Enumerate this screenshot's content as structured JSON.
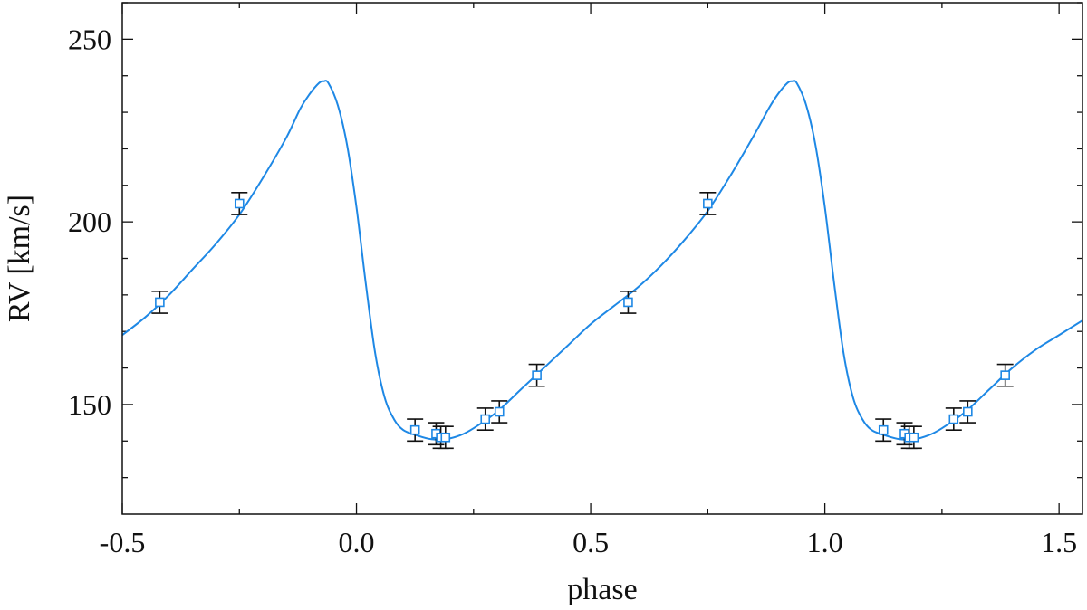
{
  "chart_data": {
    "type": "scatter",
    "title": "",
    "xlabel": "phase",
    "ylabel": "RV [km/s]",
    "xlim": [
      -0.5,
      1.55
    ],
    "ylim": [
      120,
      260
    ],
    "x_ticks": [
      -0.5,
      0.0,
      0.5,
      1.0,
      1.5
    ],
    "x_tick_labels": [
      "-0.5",
      "0.0",
      "0.5",
      "1.0",
      "1.5"
    ],
    "x_minor_step": 0.25,
    "y_ticks": [
      150,
      200,
      250
    ],
    "y_tick_labels": [
      "150",
      "200",
      "250"
    ],
    "y_minor_step": 10,
    "grid": false,
    "legend": "none",
    "colors": {
      "model": "#1e88e5",
      "points": "#1e88e5",
      "errorbars": "#111111"
    },
    "series": [
      {
        "kind": "points_with_errorbars",
        "points": [
          {
            "x": -0.42,
            "y": 178,
            "err": 3
          },
          {
            "x": -0.25,
            "y": 205,
            "err": 3
          },
          {
            "x": 0.125,
            "y": 143,
            "err": 3
          },
          {
            "x": 0.17,
            "y": 142,
            "err": 3
          },
          {
            "x": 0.18,
            "y": 141,
            "err": 3
          },
          {
            "x": 0.19,
            "y": 141,
            "err": 3
          },
          {
            "x": 0.275,
            "y": 146,
            "err": 3
          },
          {
            "x": 0.305,
            "y": 148,
            "err": 3
          },
          {
            "x": 0.385,
            "y": 158,
            "err": 3
          },
          {
            "x": 0.58,
            "y": 178,
            "err": 3
          },
          {
            "x": 0.75,
            "y": 205,
            "err": 3
          },
          {
            "x": 1.125,
            "y": 143,
            "err": 3
          },
          {
            "x": 1.17,
            "y": 142,
            "err": 3
          },
          {
            "x": 1.18,
            "y": 141,
            "err": 3
          },
          {
            "x": 1.19,
            "y": 141,
            "err": 3
          },
          {
            "x": 1.275,
            "y": 146,
            "err": 3
          },
          {
            "x": 1.305,
            "y": 148,
            "err": 3
          },
          {
            "x": 1.385,
            "y": 158,
            "err": 3
          }
        ]
      },
      {
        "kind": "model_curve",
        "x": [
          -0.5,
          -0.45,
          -0.4,
          -0.35,
          -0.3,
          -0.25,
          -0.2,
          -0.15,
          -0.12,
          -0.1,
          -0.08,
          -0.07,
          -0.06,
          -0.04,
          -0.02,
          0.0,
          0.02,
          0.04,
          0.06,
          0.08,
          0.1,
          0.13,
          0.16,
          0.19,
          0.22,
          0.25,
          0.3,
          0.35,
          0.4,
          0.45,
          0.5,
          0.55,
          0.6,
          0.65,
          0.7,
          0.75,
          0.8,
          0.85,
          0.88,
          0.9,
          0.92,
          0.93,
          0.94,
          0.96,
          0.98,
          1.0,
          1.02,
          1.04,
          1.06,
          1.08,
          1.1,
          1.13,
          1.16,
          1.19,
          1.22,
          1.25,
          1.3,
          1.35,
          1.4,
          1.45,
          1.5,
          1.55
        ],
        "y": [
          169,
          174,
          180,
          187,
          194,
          202,
          212,
          223,
          231,
          235,
          238,
          238.5,
          238,
          232,
          221,
          204,
          183,
          164,
          152,
          146,
          143,
          141.5,
          140.5,
          140.5,
          141.5,
          143.5,
          148,
          154,
          160,
          166,
          172,
          177,
          182,
          188,
          195,
          203,
          213,
          224,
          231,
          235,
          238,
          238.5,
          238,
          232,
          221,
          204,
          183,
          164,
          152,
          146,
          143,
          141.5,
          140.5,
          140.5,
          141.5,
          143.5,
          148,
          154,
          160,
          165,
          169,
          173
        ]
      }
    ]
  }
}
